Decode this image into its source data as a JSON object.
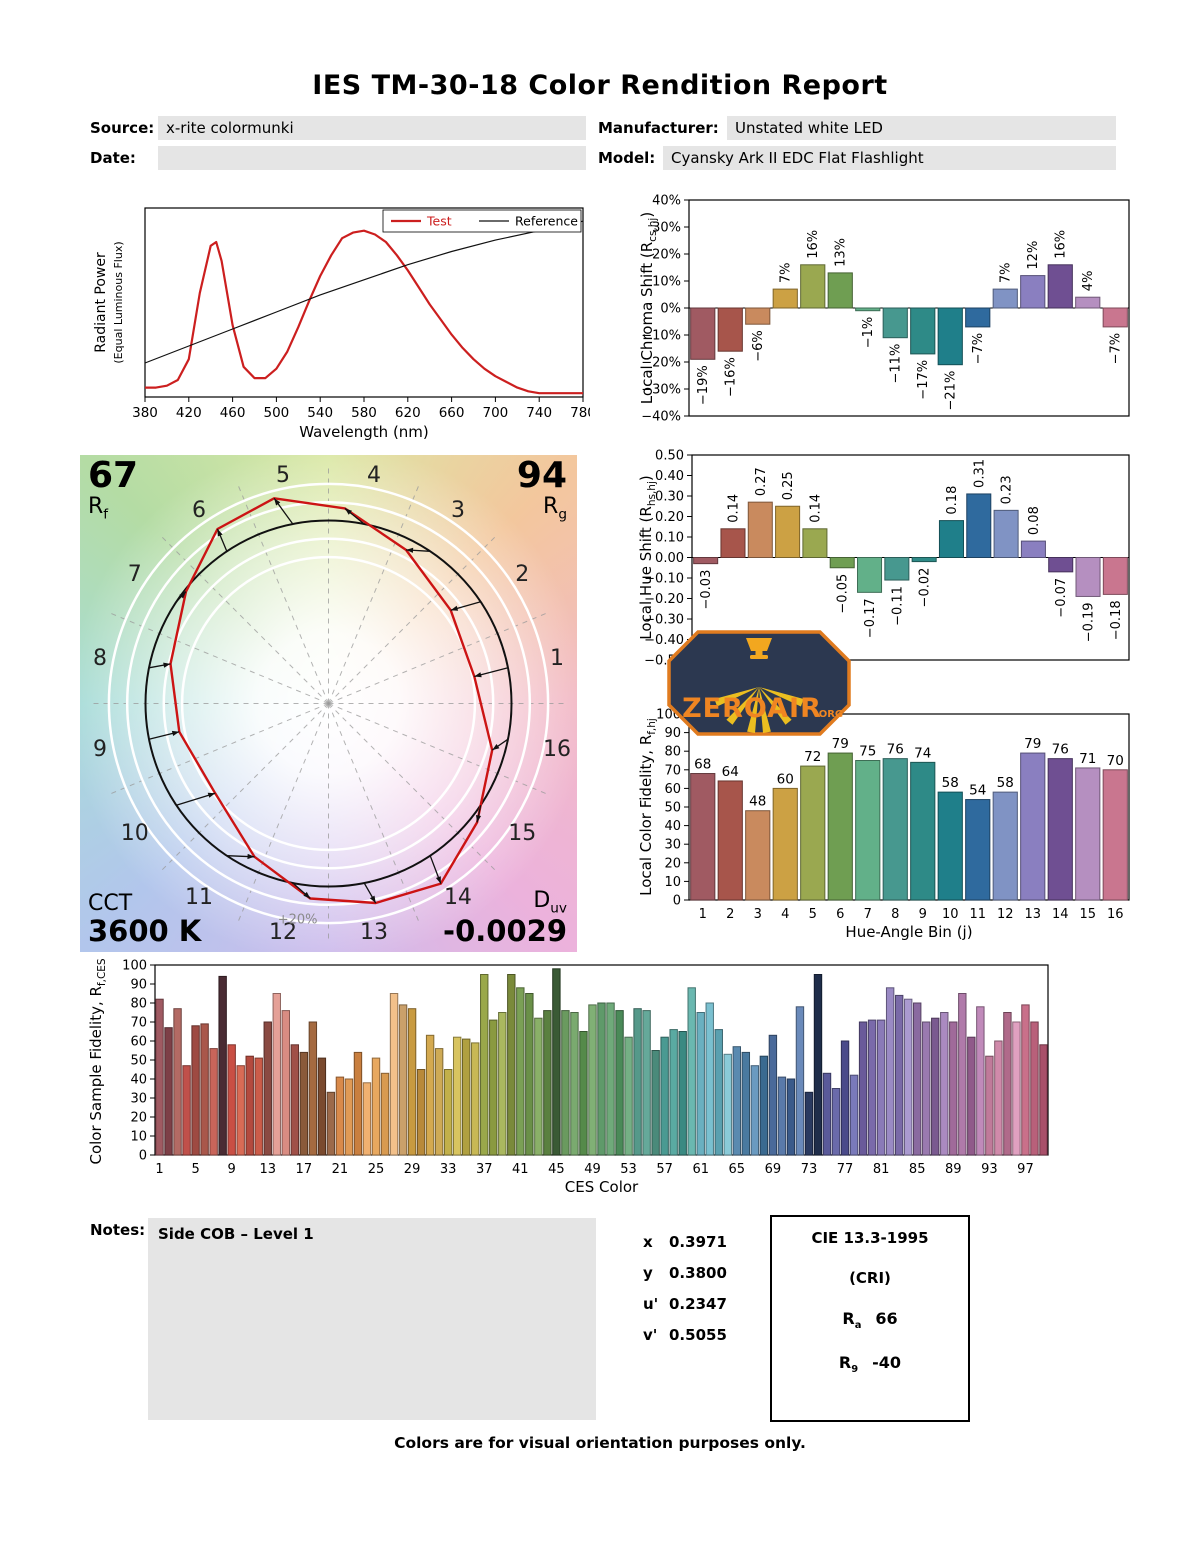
{
  "report": {
    "title": "IES TM-30-18 Color Rendition Report",
    "header": {
      "source_label": "Source:",
      "source": "x-rite colormunki",
      "date_label": "Date:",
      "date": "",
      "manufacturer_label": "Manufacturer:",
      "manufacturer": "Unstated white LED",
      "model_label": "Model:",
      "model": "Cyansky Ark II EDC Flat Flashlight"
    },
    "notes_label": "Notes:",
    "notes": "Side COB – Level 1",
    "chromaticity": [
      {
        "label": "x",
        "value": "0.3971"
      },
      {
        "label": "y",
        "value": "0.3800"
      },
      {
        "label": "u'",
        "value": "0.2347"
      },
      {
        "label": "v'",
        "value": "0.5055"
      }
    ],
    "cri": {
      "title": "CIE 13.3-1995",
      "subtitle": "(CRI)",
      "ra_base": "R",
      "ra_sub": "a",
      "ra_value": "66",
      "r9_base": "R",
      "r9_sub": "9",
      "r9_value": "-40"
    },
    "footer": "Colors are for visual orientation purposes only.",
    "logo": {
      "text": "ZEROAIR",
      "suffix": ".ORG"
    }
  },
  "cvg": {
    "rf_value": "67",
    "rf_base": "R",
    "rf_sub": "f",
    "rg_value": "94",
    "rg_base": "R",
    "rg_sub": "g",
    "cct_label": "CCT",
    "cct_value": "3600 K",
    "duv_base": "D",
    "duv_sub": "uv",
    "duv_value": "-0.0029",
    "plus20": "+20%"
  },
  "hue_bin_colors": [
    "#a05a62",
    "#a7554b",
    "#c98a5e",
    "#cca144",
    "#9aa850",
    "#6f9e52",
    "#62b089",
    "#47988f",
    "#2e8a87",
    "#1f7f8a",
    "#2f6a9e",
    "#8093c4",
    "#8a7fc0",
    "#6f4f92",
    "#b58fc0",
    "#c9768f"
  ],
  "chart_data": [
    {
      "id": "spd",
      "type": "line",
      "xlabel": "Wavelength (nm)",
      "ylabel": "Radiant Power",
      "ylabel2": "(Equal Luminous Flux)",
      "xlim": [
        380,
        780
      ],
      "xticks": [
        380,
        420,
        460,
        500,
        540,
        580,
        620,
        660,
        700,
        740,
        780
      ],
      "legend": [
        "Test",
        "Reference"
      ],
      "series": [
        {
          "name": "Test",
          "color": "#cc1f1f",
          "width": 2.2,
          "x": [
            380,
            390,
            400,
            410,
            420,
            430,
            440,
            445,
            450,
            460,
            470,
            480,
            490,
            500,
            510,
            520,
            530,
            540,
            550,
            560,
            570,
            580,
            590,
            600,
            610,
            620,
            630,
            640,
            650,
            660,
            670,
            680,
            690,
            700,
            710,
            720,
            730,
            740,
            760,
            780
          ],
          "y": [
            0.05,
            0.05,
            0.06,
            0.09,
            0.2,
            0.55,
            0.8,
            0.82,
            0.72,
            0.38,
            0.16,
            0.1,
            0.1,
            0.15,
            0.24,
            0.37,
            0.51,
            0.64,
            0.75,
            0.84,
            0.87,
            0.88,
            0.86,
            0.82,
            0.75,
            0.67,
            0.58,
            0.49,
            0.41,
            0.33,
            0.26,
            0.2,
            0.15,
            0.11,
            0.08,
            0.05,
            0.03,
            0.02,
            0.02,
            0.02
          ]
        },
        {
          "name": "Reference",
          "color": "#111111",
          "width": 1.2,
          "x": [
            380,
            420,
            460,
            500,
            540,
            580,
            620,
            660,
            700,
            740,
            780
          ],
          "y": [
            0.18,
            0.27,
            0.36,
            0.45,
            0.54,
            0.62,
            0.7,
            0.77,
            0.83,
            0.88,
            0.93
          ]
        }
      ]
    },
    {
      "id": "chroma_shift",
      "type": "bar",
      "ylabel_main": "Local Chroma Shift (R",
      "ylabel_sub": "cs,hj",
      "ylabel_end": ")",
      "categories": [
        1,
        2,
        3,
        4,
        5,
        6,
        7,
        8,
        9,
        10,
        11,
        12,
        13,
        14,
        15,
        16
      ],
      "values": [
        -19,
        -16,
        -6,
        7,
        16,
        13,
        -1,
        -11,
        -17,
        -21,
        -7,
        7,
        12,
        16,
        4,
        -7
      ],
      "ylim": [
        -40,
        40
      ],
      "ystep": 10,
      "unit": "%"
    },
    {
      "id": "hue_shift",
      "type": "bar",
      "ylabel_main": "Local Hue Shift (R",
      "ylabel_sub": "hs,hj",
      "ylabel_end": ")",
      "categories": [
        1,
        2,
        3,
        4,
        5,
        6,
        7,
        8,
        9,
        10,
        11,
        12,
        13,
        14,
        15,
        16
      ],
      "values": [
        -0.03,
        0.14,
        0.27,
        0.25,
        0.14,
        -0.05,
        -0.17,
        -0.11,
        -0.02,
        0.18,
        0.31,
        0.23,
        0.08,
        -0.07,
        -0.19,
        -0.18
      ],
      "ylim": [
        -0.5,
        0.5
      ],
      "ystep": 0.1
    },
    {
      "id": "local_fidelity",
      "type": "bar",
      "ylabel_main": "Local Color Fidelity, R",
      "ylabel_sub": "f,hj",
      "ylabel_end": "",
      "xlabel": "Hue-Angle Bin (j)",
      "categories": [
        1,
        2,
        3,
        4,
        5,
        6,
        7,
        8,
        9,
        10,
        11,
        12,
        13,
        14,
        15,
        16
      ],
      "values": [
        68,
        64,
        48,
        60,
        72,
        79,
        75,
        76,
        74,
        58,
        54,
        58,
        79,
        76,
        71,
        70
      ],
      "ylim": [
        0,
        100
      ],
      "ystep": 10
    },
    {
      "id": "ces",
      "type": "bar",
      "ylabel_main": "Color Sample Fidelity, R",
      "ylabel_sub": "f,CESi",
      "ylabel_end": "",
      "xlabel": "CES Color",
      "xticks": [
        1,
        5,
        9,
        13,
        17,
        21,
        25,
        29,
        33,
        37,
        41,
        45,
        49,
        53,
        57,
        61,
        65,
        69,
        73,
        77,
        81,
        85,
        89,
        93,
        97
      ],
      "values": [
        82,
        67,
        77,
        47,
        68,
        69,
        56,
        94,
        58,
        47,
        52,
        51,
        70,
        85,
        76,
        58,
        54,
        70,
        51,
        33,
        41,
        40,
        54,
        38,
        51,
        43,
        85,
        79,
        77,
        45,
        63,
        56,
        45,
        62,
        61,
        59,
        95,
        71,
        75,
        95,
        88,
        85,
        72,
        76,
        98,
        76,
        75,
        65,
        79,
        80,
        80,
        76,
        62,
        77,
        76,
        55,
        62,
        66,
        65,
        88,
        75,
        80,
        66,
        53,
        57,
        54,
        47,
        52,
        63,
        41,
        40,
        78,
        33,
        95,
        43,
        35,
        60,
        42,
        70,
        71,
        71,
        88,
        84,
        82,
        80,
        70,
        72,
        75,
        70,
        85,
        62,
        78,
        52,
        60,
        75,
        70,
        79,
        70,
        58
      ],
      "colors": [
        "#a05a62",
        "#7d3f47",
        "#b36a64",
        "#c0504a",
        "#9e4a42",
        "#a9574b",
        "#c9655a",
        "#4a2b33",
        "#c94f44",
        "#d96b55",
        "#b44a3e",
        "#cc5c49",
        "#8a4a42",
        "#e5a097",
        "#d98c82",
        "#a05048",
        "#8a5a3a",
        "#a56a40",
        "#7a4a2e",
        "#9c6a4a",
        "#d98a4a",
        "#e09a55",
        "#c97f3f",
        "#f0b070",
        "#e8a85f",
        "#d89a50",
        "#f2c08a",
        "#caa06a",
        "#c89a40",
        "#b8893a",
        "#d4a94f",
        "#ceaa55",
        "#c2b04a",
        "#d8c45f",
        "#b0a040",
        "#c8b855",
        "#9aa84a",
        "#8a9a40",
        "#aab85f",
        "#7a8a3a",
        "#7aa055",
        "#6a9048",
        "#8ab068",
        "#5a8040",
        "#3a5a35",
        "#6a9a5f",
        "#7aaa6f",
        "#558a4a",
        "#80b075",
        "#5f9a6a",
        "#6faa7a",
        "#4a8a58",
        "#75b085",
        "#55998a",
        "#65a99a",
        "#4a8a7a",
        "#4a9a92",
        "#5aaaa2",
        "#3a8a82",
        "#6ab8b0",
        "#6ab0c0",
        "#7ac0d0",
        "#5aa0b0",
        "#8acad8",
        "#5a8ab0",
        "#4a7aa0",
        "#6a9ac0",
        "#3a6a90",
        "#4a6a9a",
        "#5a7aaa",
        "#3a5a8a",
        "#6a8aba",
        "#2a3a60",
        "#1f2d4a",
        "#5a5a9a",
        "#6a6aaa",
        "#4a4a8a",
        "#7a7aba",
        "#6a5a9a",
        "#7a6aaa",
        "#8a7ab8",
        "#9a8ac4",
        "#7a6aa8",
        "#aa9ad0",
        "#8a6aa0",
        "#9a7ab0",
        "#7a5a90",
        "#aa8ac0",
        "#a06a9a",
        "#b07aaa",
        "#905a8a",
        "#c08aba",
        "#c07a9a",
        "#d08aaa",
        "#b06a8a",
        "#e0a0c0",
        "#c9708a",
        "#b9607a",
        "#a9506a"
      ],
      "ylim": [
        0,
        100
      ],
      "ystep": 10
    },
    {
      "id": "cvg",
      "type": "color-vector-graphic",
      "rf": 67,
      "rg": 94,
      "cct": "3600 K",
      "duv": -0.0029,
      "ref_circle_pcts": [
        80,
        90,
        110,
        120
      ]
    }
  ]
}
